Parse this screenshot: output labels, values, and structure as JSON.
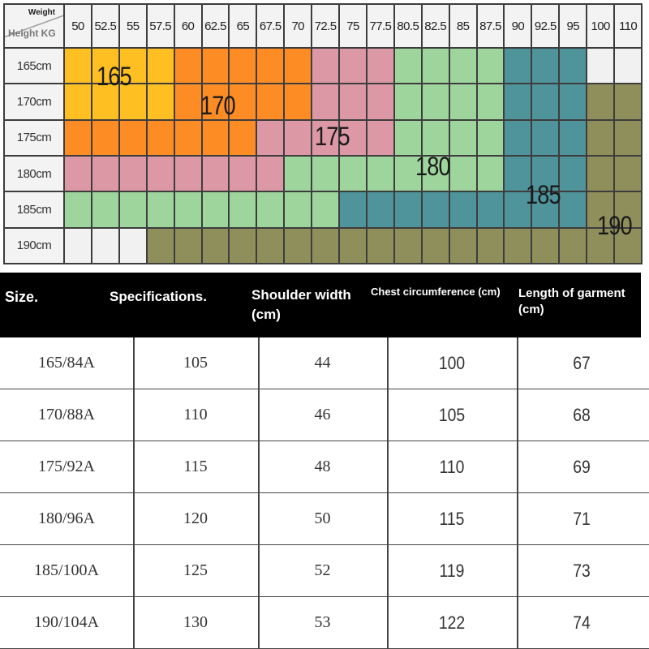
{
  "grid": {
    "corner_weight": "Weight",
    "corner_height": "Height KG",
    "weights": [
      "50",
      "52.5",
      "55",
      "57.5",
      "60",
      "62.5",
      "65",
      "67.5",
      "70",
      "72.5",
      "75",
      "77.5",
      "80.5",
      "82.5",
      "85",
      "87.5",
      "90",
      "92.5",
      "95",
      "100",
      "110"
    ],
    "heights": [
      "165cm",
      "170cm",
      "175cm",
      "180cm",
      "185cm",
      "190cm"
    ],
    "cells": [
      [
        "165",
        "165",
        "165",
        "165",
        "170",
        "170",
        "170",
        "170",
        "170",
        "175",
        "175",
        "175",
        "180",
        "180",
        "180",
        "180",
        "185",
        "185",
        "185",
        "none",
        "none"
      ],
      [
        "165",
        "165",
        "165",
        "165",
        "170",
        "170",
        "170",
        "170",
        "170",
        "175",
        "175",
        "175",
        "180",
        "180",
        "180",
        "180",
        "185",
        "185",
        "185",
        "190",
        "190"
      ],
      [
        "170",
        "170",
        "170",
        "170",
        "170",
        "170",
        "170",
        "175",
        "175",
        "175",
        "175",
        "175",
        "180",
        "180",
        "180",
        "180",
        "185",
        "185",
        "185",
        "190",
        "190"
      ],
      [
        "175",
        "175",
        "175",
        "175",
        "175",
        "175",
        "175",
        "175",
        "180",
        "180",
        "180",
        "180",
        "180",
        "180",
        "180",
        "180",
        "185",
        "185",
        "185",
        "190",
        "190"
      ],
      [
        "180",
        "180",
        "180",
        "180",
        "180",
        "180",
        "180",
        "180",
        "180",
        "180",
        "185",
        "185",
        "185",
        "185",
        "185",
        "185",
        "185",
        "185",
        "185",
        "190",
        "190"
      ],
      [
        "none",
        "none",
        "none",
        "190",
        "190",
        "190",
        "190",
        "190",
        "190",
        "190",
        "190",
        "190",
        "190",
        "190",
        "190",
        "190",
        "190",
        "190",
        "190",
        "190",
        "190"
      ]
    ],
    "zone_labels": [
      "165",
      "170",
      "175",
      "180",
      "185",
      "190"
    ],
    "zone_colors": {
      "165": "#fdbf22",
      "170": "#fd8c25",
      "175": "#dc98a5",
      "180": "#9ed59c",
      "185": "#4f939b",
      "190": "#8f8f5c",
      "none": "#f1f1f1"
    }
  },
  "table": {
    "headers": {
      "size": "Size.",
      "spec": "Specifications.",
      "shoulder": "Shoulder width (cm)",
      "chest": "Chest circumference (cm)",
      "length": "Length of garment (cm)"
    },
    "rows": [
      {
        "size": "165/84A",
        "spec": "105",
        "shoulder": "44",
        "chest": "100",
        "length": "67"
      },
      {
        "size": "170/88A",
        "spec": "110",
        "shoulder": "46",
        "chest": "105",
        "length": "68"
      },
      {
        "size": "175/92A",
        "spec": "115",
        "shoulder": "48",
        "chest": "110",
        "length": "69"
      },
      {
        "size": "180/96A",
        "spec": "120",
        "shoulder": "50",
        "chest": "115",
        "length": "71"
      },
      {
        "size": "185/100A",
        "spec": "125",
        "shoulder": "52",
        "chest": "119",
        "length": "73"
      },
      {
        "size": "190/104A",
        "spec": "130",
        "shoulder": "53",
        "chest": "122",
        "length": "74"
      }
    ]
  }
}
